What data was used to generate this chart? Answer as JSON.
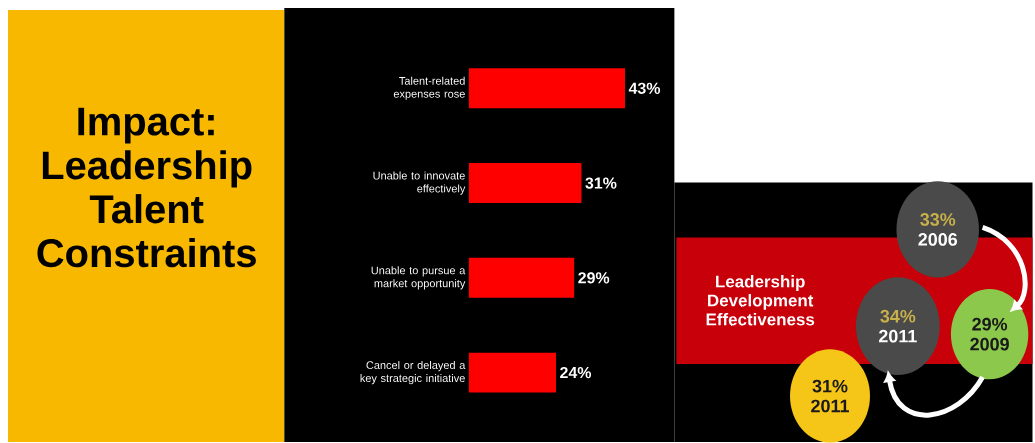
{
  "chart_data": [
    {
      "type": "bar",
      "title": "Impact: Leadership Talent Constraints",
      "orientation": "horizontal",
      "categories": [
        "Talent-related expenses rose",
        "Unable to innovate effectively",
        "Unable to pursue a market opportunity",
        "Cancel or delayed a key strategic initiative"
      ],
      "values": [
        43,
        31,
        29,
        24
      ],
      "value_labels": [
        "43%",
        "31%",
        "29%",
        "24%"
      ],
      "color": "#ff0000"
    },
    {
      "type": "other",
      "title": "Leadership Development Effectiveness",
      "categories": [
        "2006",
        "2009",
        "2011",
        "2011"
      ],
      "values": [
        33,
        29,
        34,
        31
      ],
      "value_labels": [
        "33%",
        "29%",
        "34%",
        "31%"
      ],
      "colors": [
        "#4a4a4a",
        "#8cc84b",
        "#4a4a4a",
        "#f5c518"
      ]
    }
  ]
}
